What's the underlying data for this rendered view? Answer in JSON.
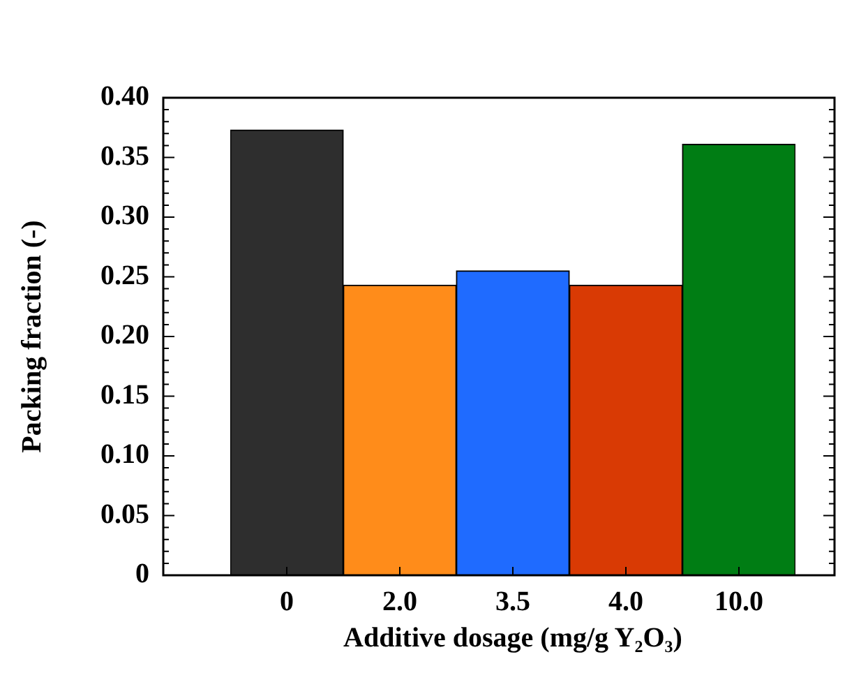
{
  "chart_data": {
    "type": "bar",
    "xlabel": "Additive dosage (mg/g Y₂O₃)",
    "ylabel": "Packing fraction (-)",
    "categories": [
      "0",
      "2.0",
      "3.5",
      "4.0",
      "10.0"
    ],
    "values": [
      0.373,
      0.243,
      0.255,
      0.243,
      0.361
    ],
    "colors": [
      "#2e2e2e",
      "#ff8c1a",
      "#1f6bff",
      "#d93a04",
      "#007d14"
    ],
    "ylim": [
      0,
      0.4
    ],
    "yticks": [
      0,
      0.05,
      {
        "value": 0.1,
        "label": "0.10"
      },
      0.15,
      {
        "value": 0.2,
        "label": "0.20"
      },
      0.25,
      {
        "value": 0.3,
        "label": "0.30"
      },
      0.35,
      {
        "value": 0.4,
        "label": "0.40"
      }
    ],
    "grid": false,
    "legend": false
  }
}
